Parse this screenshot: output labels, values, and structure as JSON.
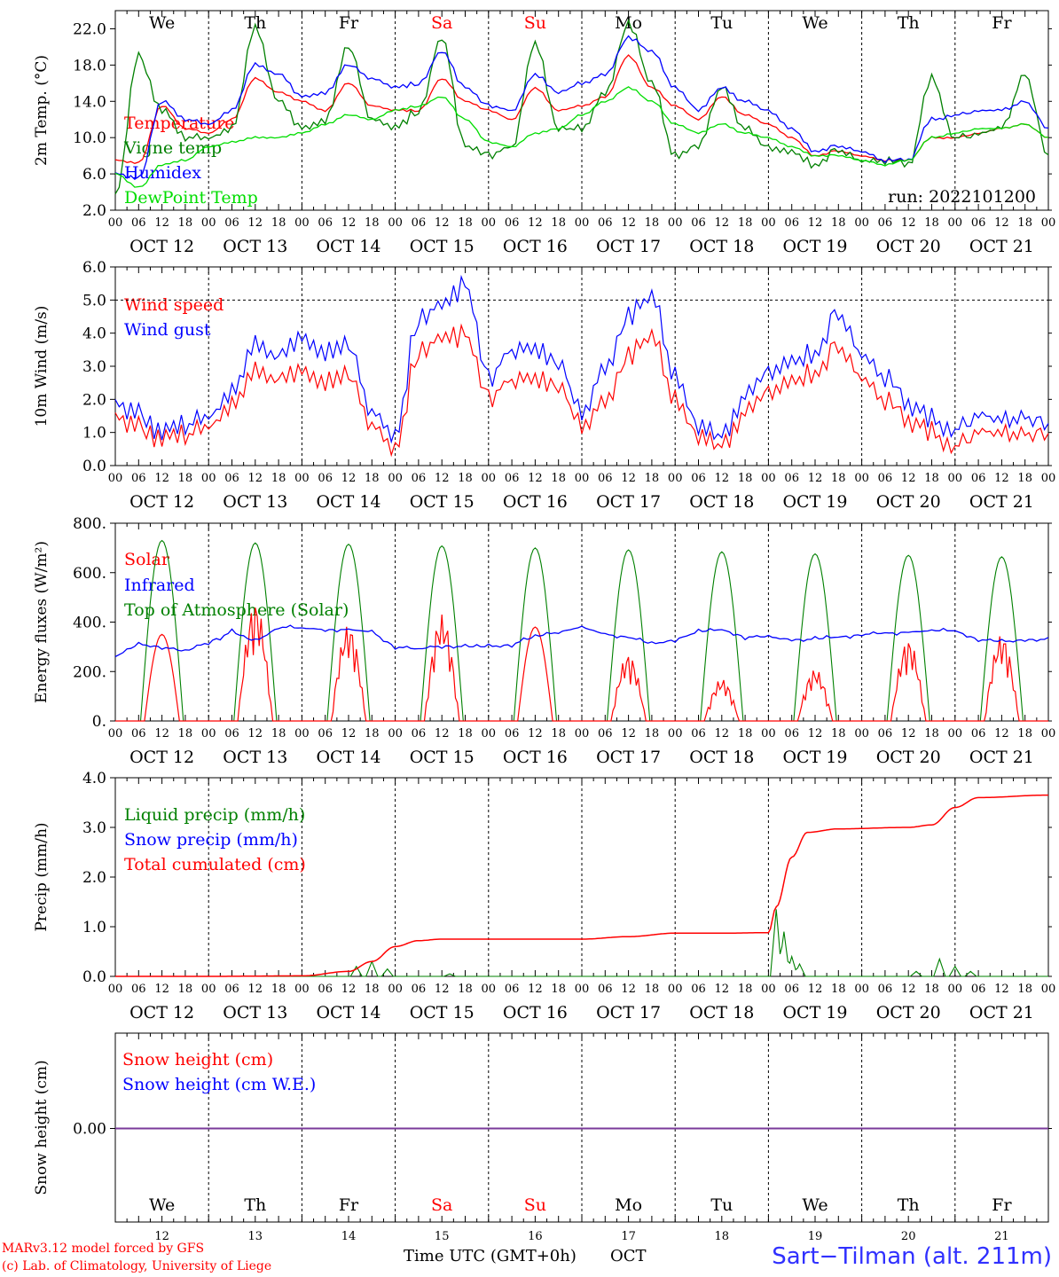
{
  "chart_data": [
    {
      "type": "line",
      "ylabel": "2m Temp. (°C)",
      "ylim": [
        2,
        24
      ],
      "yticks": [
        "2.0",
        "6.0",
        "10.0",
        "14.0",
        "18.0",
        "22.0"
      ],
      "ytick_values": [
        2,
        6,
        10,
        14,
        18,
        22
      ],
      "annotation": "run: 2022101200",
      "x_hours": [
        0,
        6,
        12,
        18,
        24,
        30,
        36,
        42,
        48,
        54,
        60,
        66,
        72,
        78,
        84,
        90,
        96,
        102,
        108,
        114,
        120,
        126,
        132,
        138,
        144,
        150,
        156,
        162,
        168,
        174,
        180,
        186,
        192,
        198,
        204,
        210,
        216,
        222,
        228,
        234,
        240
      ],
      "series": [
        {
          "name": "Temperature",
          "color": "#ff0000",
          "values": [
            7.5,
            7.2,
            13.5,
            11.0,
            10.5,
            12.0,
            16.5,
            15.0,
            14.0,
            13.0,
            16.0,
            13.5,
            13.0,
            13.0,
            16.5,
            14.0,
            13.0,
            12.0,
            15.5,
            13.0,
            13.5,
            14.5,
            19.0,
            15.5,
            13.5,
            12.0,
            14.5,
            12.5,
            11.5,
            10.0,
            8.0,
            8.5,
            8.0,
            7.5,
            7.5,
            10.0,
            10.0,
            10.5,
            11.0,
            11.5,
            10.0
          ]
        },
        {
          "name": "Vigne temp",
          "color": "#008000",
          "values": [
            3.5,
            19.0,
            13.0,
            10.0,
            10.0,
            11.0,
            22.0,
            14.0,
            11.0,
            12.0,
            20.0,
            12.0,
            11.0,
            13.0,
            21.0,
            9.0,
            8.0,
            9.0,
            20.5,
            11.0,
            11.0,
            15.0,
            22.5,
            16.0,
            8.0,
            9.0,
            15.5,
            11.0,
            9.0,
            8.5,
            7.0,
            8.5,
            7.5,
            7.5,
            7.0,
            16.5,
            10.0,
            10.5,
            11.0,
            17.0,
            8.0
          ]
        },
        {
          "name": "Humidex",
          "color": "#0000ff",
          "values": [
            6.0,
            5.5,
            14.0,
            12.0,
            11.5,
            13.0,
            18.0,
            17.0,
            14.5,
            15.0,
            18.0,
            16.5,
            15.5,
            16.0,
            19.5,
            15.5,
            13.5,
            13.0,
            17.0,
            15.0,
            16.0,
            17.0,
            21.0,
            19.5,
            15.5,
            13.0,
            15.5,
            14.0,
            13.0,
            11.0,
            8.5,
            9.0,
            8.5,
            7.5,
            7.5,
            12.0,
            12.5,
            13.0,
            13.0,
            14.0,
            11.0
          ]
        },
        {
          "name": "DewPoint Temp",
          "color": "#00dd00",
          "values": [
            6.0,
            4.5,
            7.0,
            7.5,
            9.0,
            9.5,
            10.0,
            10.0,
            10.5,
            11.5,
            12.5,
            12.0,
            13.0,
            13.5,
            14.5,
            12.0,
            9.5,
            9.0,
            10.5,
            11.0,
            12.5,
            14.0,
            15.5,
            14.0,
            11.5,
            10.5,
            11.5,
            10.5,
            10.0,
            9.0,
            8.0,
            8.0,
            7.5,
            7.0,
            7.5,
            10.0,
            10.5,
            11.0,
            11.0,
            11.5,
            10.0
          ]
        }
      ]
    },
    {
      "type": "line",
      "ylabel": "10m Wind (m/s)",
      "ylim": [
        0,
        6
      ],
      "yticks": [
        "0.0",
        "1.0",
        "2.0",
        "3.0",
        "4.0",
        "5.0",
        "6.0"
      ],
      "ytick_values": [
        0,
        1,
        2,
        3,
        4,
        5,
        6
      ],
      "x_hours": [
        0,
        6,
        12,
        18,
        24,
        30,
        36,
        42,
        48,
        54,
        60,
        66,
        72,
        78,
        84,
        90,
        96,
        102,
        108,
        114,
        120,
        126,
        132,
        138,
        144,
        150,
        156,
        162,
        168,
        174,
        180,
        186,
        192,
        198,
        204,
        210,
        216,
        222,
        228,
        234,
        240
      ],
      "series": [
        {
          "name": "Wind speed",
          "color": "#ff0000",
          "values": [
            1.4,
            1.2,
            0.8,
            0.9,
            1.2,
            1.8,
            2.8,
            2.6,
            2.8,
            2.6,
            2.7,
            1.2,
            0.4,
            3.5,
            3.9,
            3.9,
            2.0,
            2.6,
            2.7,
            2.4,
            1.2,
            2.0,
            3.3,
            3.9,
            2.0,
            0.8,
            0.6,
            1.6,
            2.3,
            2.6,
            2.8,
            3.5,
            2.7,
            2.0,
            1.3,
            1.0,
            0.6,
            1.1,
            0.9,
            1.0,
            0.9
          ]
        },
        {
          "name": "Wind gust",
          "color": "#0000ff",
          "values": [
            1.8,
            1.6,
            1.0,
            1.2,
            1.5,
            2.2,
            3.6,
            3.3,
            3.8,
            3.5,
            3.6,
            1.6,
            0.8,
            4.5,
            4.9,
            5.4,
            2.6,
            3.5,
            3.6,
            3.1,
            1.6,
            3.0,
            4.5,
            5.1,
            2.7,
            1.1,
            0.9,
            2.1,
            2.9,
            3.2,
            3.4,
            4.5,
            3.4,
            2.7,
            1.8,
            1.4,
            1.1,
            1.6,
            1.3,
            1.5,
            1.2
          ]
        }
      ]
    },
    {
      "type": "line",
      "ylabel": "Energy fluxes (W/m²)",
      "ylim": [
        0,
        800
      ],
      "yticks": [
        "0.",
        "200.",
        "400.",
        "600.",
        "800."
      ],
      "ytick_values": [
        0,
        200,
        400,
        600,
        800
      ],
      "days": 10,
      "toa_peaks": [
        730,
        720,
        715,
        708,
        700,
        692,
        684,
        676,
        670,
        664
      ],
      "solar_peaks": [
        350,
        480,
        390,
        430,
        380,
        270,
        170,
        210,
        330,
        350
      ],
      "series": [
        {
          "name": "Solar",
          "color": "#ff0000"
        },
        {
          "name": "Infrared",
          "color": "#0000ff",
          "values": [
            260,
            310,
            300,
            280,
            320,
            360,
            320,
            380,
            375,
            370,
            370,
            360,
            300,
            290,
            305,
            300,
            300,
            310,
            340,
            360,
            380,
            350,
            340,
            310,
            330,
            360,
            370,
            340,
            340,
            330,
            330,
            340,
            350,
            355,
            360,
            365,
            365,
            330,
            320,
            330
          ]
        },
        {
          "name": "Top of Atmosphere (Solar)",
          "color": "#008000"
        }
      ]
    },
    {
      "type": "line",
      "ylabel": "Precip (mm/h)",
      "ylim": [
        0,
        4
      ],
      "yticks": [
        "0.0",
        "1.0",
        "2.0",
        "3.0",
        "4.0"
      ],
      "ytick_values": [
        0,
        1,
        2,
        3,
        4
      ],
      "x_hours": [
        0,
        24,
        48,
        60,
        66,
        72,
        78,
        84,
        96,
        120,
        132,
        144,
        156,
        168,
        170,
        174,
        178,
        186,
        204,
        210,
        216,
        222,
        240
      ],
      "series": [
        {
          "name": "Liquid precip (mm/h)",
          "color": "#008000",
          "spikes": [
            [
              62,
              0.2
            ],
            [
              66,
              0.3
            ],
            [
              70,
              0.15
            ],
            [
              86,
              0.05
            ],
            [
              170,
              1.35
            ],
            [
              172,
              0.9
            ],
            [
              174,
              0.4
            ],
            [
              176,
              0.25
            ],
            [
              206,
              0.1
            ],
            [
              212,
              0.35
            ],
            [
              216,
              0.2
            ],
            [
              220,
              0.1
            ]
          ]
        },
        {
          "name": "Snow precip (mm/h)",
          "color": "#0000ff"
        },
        {
          "name": "Total cumulated (cm)",
          "color": "#ff0000",
          "values": [
            0,
            0,
            0.01,
            0.1,
            0.3,
            0.6,
            0.72,
            0.75,
            0.75,
            0.75,
            0.8,
            0.87,
            0.87,
            0.88,
            1.4,
            2.4,
            2.9,
            2.97,
            3.0,
            3.05,
            3.4,
            3.6,
            3.65
          ]
        }
      ]
    },
    {
      "type": "line",
      "ylabel": "Snow height (cm)",
      "yticks": [
        "0.00"
      ],
      "series": [
        {
          "name": "Snow height (cm)",
          "color": "#ff0000"
        },
        {
          "name": "Snow height (cm W.E.)",
          "color": "#0000ff"
        }
      ]
    }
  ],
  "x_axis": {
    "hour_ticks": [
      "00",
      "06",
      "12",
      "18"
    ],
    "final_tick": "00",
    "dates": [
      "OCT 12",
      "OCT 13",
      "OCT 14",
      "OCT 15",
      "OCT 16",
      "OCT 17",
      "OCT 18",
      "OCT 19",
      "OCT 20",
      "OCT 21"
    ],
    "weekdays": [
      "We",
      "Th",
      "Fr",
      "Sa",
      "Su",
      "Mo",
      "Tu",
      "We",
      "Th",
      "Fr"
    ],
    "weekend_color": "#ff0000",
    "day_numbers": [
      "12",
      "13",
      "14",
      "15",
      "16",
      "17",
      "18",
      "19",
      "20",
      "21"
    ],
    "bottom_label": "Time UTC (GMT+0h)",
    "month": "OCT"
  },
  "footer": {
    "credit_line1": "MARv3.12 model forced by GFS",
    "credit_line2": "(c) Lab. of Climatology, University of Liege",
    "location": "Sart−Tilman (alt. 211m)"
  }
}
